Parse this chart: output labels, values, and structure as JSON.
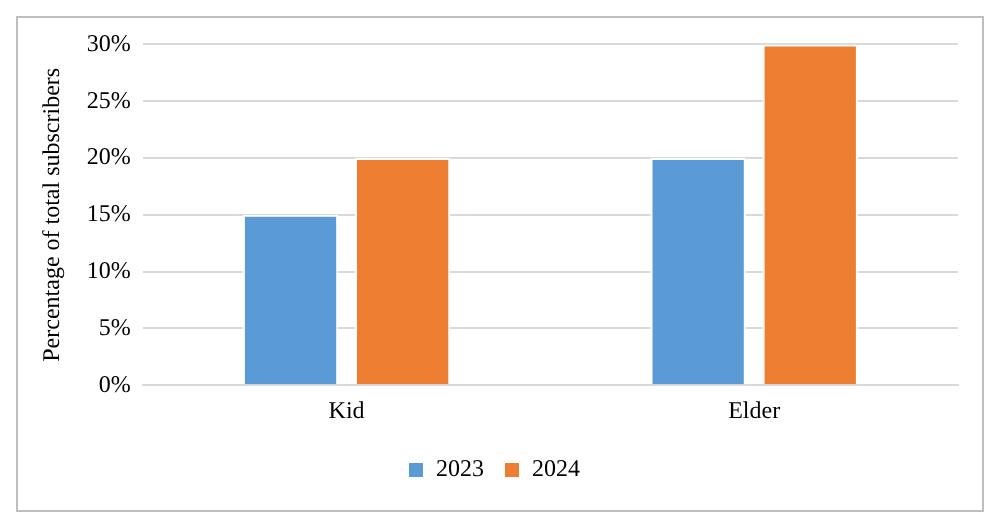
{
  "chart_data": {
    "type": "bar",
    "ylabel": "Percentage of total subscribers",
    "categories": [
      "Kid",
      "Elder"
    ],
    "series": [
      {
        "name": "2023",
        "color": "#5b9bd5",
        "values": [
          15,
          20
        ]
      },
      {
        "name": "2024",
        "color": "#ed7d31",
        "values": [
          20,
          30
        ]
      }
    ],
    "ylim": [
      0,
      30
    ],
    "yticks": [
      {
        "value": 0,
        "label": "0%"
      },
      {
        "value": 5,
        "label": "5%"
      },
      {
        "value": 10,
        "label": "10%"
      },
      {
        "value": 15,
        "label": "15%"
      },
      {
        "value": 20,
        "label": "20%"
      },
      {
        "value": 25,
        "label": "25%"
      },
      {
        "value": 30,
        "label": "30%"
      }
    ],
    "grid": "y",
    "legend": "bottom"
  }
}
